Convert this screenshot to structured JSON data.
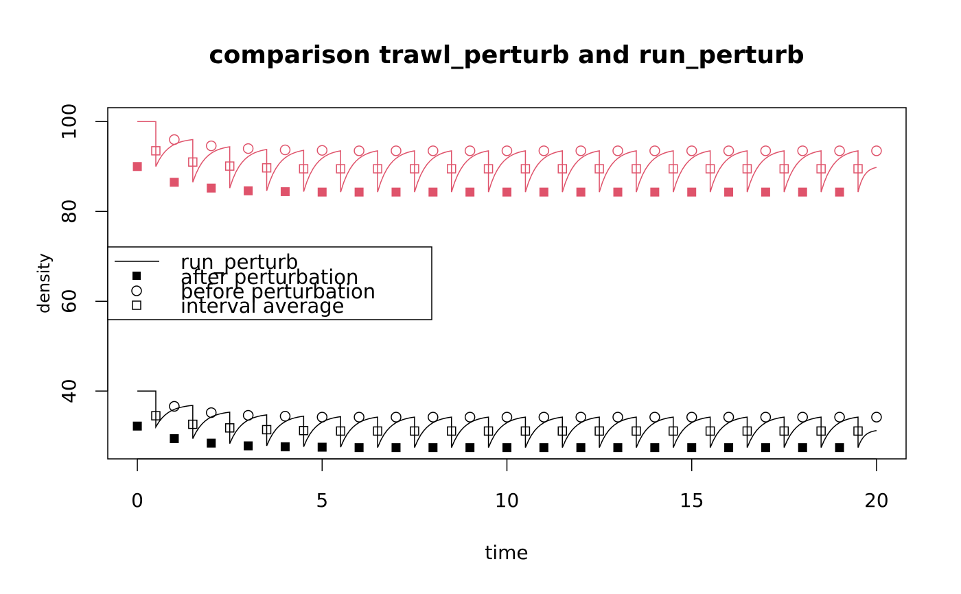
{
  "chart_data": {
    "type": "line",
    "title": "comparison trawl_perturb and run_perturb",
    "xlabel": "time",
    "ylabel": "density",
    "xlim": [
      -0.8,
      20.8
    ],
    "ylim": [
      24.9,
      103.1
    ],
    "x_ticks": [
      0,
      5,
      10,
      15,
      20
    ],
    "y_ticks": [
      40,
      60,
      80,
      100
    ],
    "grid": false,
    "legend": {
      "placement": "middle-left",
      "entries": [
        {
          "label": "run_perturb",
          "symbol": "line"
        },
        {
          "label": "after perturbation",
          "symbol": "filled-square"
        },
        {
          "label": "before perturbation",
          "symbol": "open-circle"
        },
        {
          "label": "interval average",
          "symbol": "open-square"
        }
      ]
    },
    "series": [
      {
        "color": "#DF536B",
        "run_perturb": {
          "initial_value": 100,
          "perturb_times": [
            0.5,
            1.5,
            2.5,
            3.5,
            4.5,
            5.5,
            6.5,
            7.5,
            8.5,
            9.5,
            10.5,
            11.5,
            12.5,
            13.5,
            14.5,
            15.5,
            16.5,
            17.5,
            18.5,
            19.5
          ],
          "after_values": [
            90.0,
            86.5,
            85.2,
            84.6,
            84.4,
            84.3,
            84.3,
            84.3,
            84.3,
            84.3,
            84.3,
            84.3,
            84.3,
            84.3,
            84.3,
            84.3,
            84.3,
            84.3,
            84.3,
            84.3
          ],
          "before_values": [
            100,
            96.0,
            94.4,
            93.8,
            93.6,
            93.5,
            93.5,
            93.5,
            93.5,
            93.5,
            93.5,
            93.5,
            93.5,
            93.5,
            93.5,
            93.5,
            93.5,
            93.5,
            93.5,
            93.5
          ],
          "end_value": 89.8
        },
        "after_perturbation": {
          "x": [
            0,
            1,
            2,
            3,
            4,
            5,
            6,
            7,
            8,
            9,
            10,
            11,
            12,
            13,
            14,
            15,
            16,
            17,
            18,
            19
          ],
          "y": [
            90.0,
            86.5,
            85.2,
            84.6,
            84.4,
            84.3,
            84.3,
            84.3,
            84.3,
            84.3,
            84.3,
            84.3,
            84.3,
            84.3,
            84.3,
            84.3,
            84.3,
            84.3,
            84.3,
            84.3
          ]
        },
        "before_perturbation": {
          "x": [
            1,
            2,
            3,
            4,
            5,
            6,
            7,
            8,
            9,
            10,
            11,
            12,
            13,
            14,
            15,
            16,
            17,
            18,
            19,
            20
          ],
          "y": [
            96.0,
            94.6,
            94.0,
            93.7,
            93.6,
            93.5,
            93.5,
            93.5,
            93.5,
            93.5,
            93.5,
            93.5,
            93.5,
            93.5,
            93.5,
            93.5,
            93.5,
            93.5,
            93.5,
            93.5
          ]
        },
        "interval_average": {
          "x": [
            0.5,
            1.5,
            2.5,
            3.5,
            4.5,
            5.5,
            6.5,
            7.5,
            8.5,
            9.5,
            10.5,
            11.5,
            12.5,
            13.5,
            14.5,
            15.5,
            16.5,
            17.5,
            18.5,
            19.5
          ],
          "y": [
            93.5,
            91.0,
            90.1,
            89.7,
            89.5,
            89.5,
            89.5,
            89.5,
            89.5,
            89.5,
            89.5,
            89.5,
            89.5,
            89.5,
            89.5,
            89.5,
            89.5,
            89.5,
            89.5,
            89.5
          ]
        }
      },
      {
        "color": "#000000",
        "run_perturb": {
          "initial_value": 40,
          "perturb_times": [
            0.5,
            1.5,
            2.5,
            3.5,
            4.5,
            5.5,
            6.5,
            7.5,
            8.5,
            9.5,
            10.5,
            11.5,
            12.5,
            13.5,
            14.5,
            15.5,
            16.5,
            17.5,
            18.5,
            19.5
          ],
          "after_values": [
            32.0,
            29.4,
            28.3,
            27.8,
            27.6,
            27.5,
            27.4,
            27.4,
            27.4,
            27.4,
            27.4,
            27.4,
            27.4,
            27.4,
            27.4,
            27.4,
            27.4,
            27.4,
            27.4,
            27.4
          ],
          "before_values": [
            40,
            36.8,
            35.3,
            34.7,
            34.4,
            34.3,
            34.2,
            34.2,
            34.2,
            34.2,
            34.2,
            34.2,
            34.2,
            34.2,
            34.2,
            34.2,
            34.2,
            34.2,
            34.2,
            34.2
          ],
          "end_value": 31.2
        },
        "after_perturbation": {
          "x": [
            0,
            1,
            2,
            3,
            4,
            5,
            6,
            7,
            8,
            9,
            10,
            11,
            12,
            13,
            14,
            15,
            16,
            17,
            18,
            19
          ],
          "y": [
            32.2,
            29.4,
            28.4,
            27.8,
            27.6,
            27.5,
            27.4,
            27.4,
            27.4,
            27.4,
            27.4,
            27.4,
            27.4,
            27.4,
            27.4,
            27.4,
            27.4,
            27.4,
            27.4,
            27.4
          ]
        },
        "before_perturbation": {
          "x": [
            1,
            2,
            3,
            4,
            5,
            6,
            7,
            8,
            9,
            10,
            11,
            12,
            13,
            14,
            15,
            16,
            17,
            18,
            19,
            20
          ],
          "y": [
            36.6,
            35.2,
            34.6,
            34.4,
            34.2,
            34.2,
            34.2,
            34.2,
            34.2,
            34.2,
            34.2,
            34.2,
            34.2,
            34.2,
            34.2,
            34.2,
            34.2,
            34.2,
            34.2,
            34.2
          ]
        },
        "interval_average": {
          "x": [
            0.5,
            1.5,
            2.5,
            3.5,
            4.5,
            5.5,
            6.5,
            7.5,
            8.5,
            9.5,
            10.5,
            11.5,
            12.5,
            13.5,
            14.5,
            15.5,
            16.5,
            17.5,
            18.5,
            19.5
          ],
          "y": [
            34.5,
            32.6,
            31.8,
            31.4,
            31.2,
            31.1,
            31.1,
            31.1,
            31.1,
            31.1,
            31.1,
            31.1,
            31.1,
            31.1,
            31.1,
            31.1,
            31.1,
            31.1,
            31.1,
            31.1
          ]
        }
      }
    ]
  }
}
